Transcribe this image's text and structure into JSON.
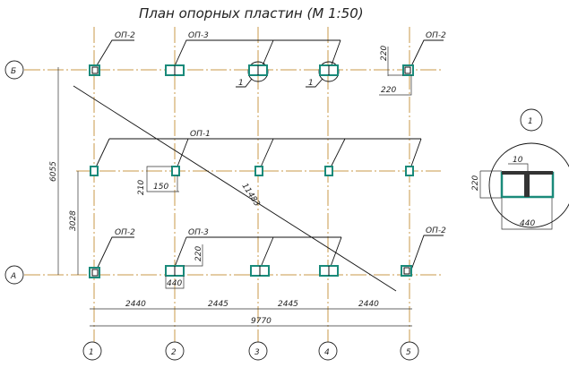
{
  "title": "План опорных пластин (М 1:50)",
  "axes_columns": [
    "1",
    "2",
    "3",
    "4",
    "5"
  ],
  "axes_rows": [
    "Б",
    "А"
  ],
  "marks": {
    "op1": "ОП-1",
    "op2": "ОП-2",
    "op3": "ОП-3",
    "callout": "1"
  },
  "dimensions": {
    "spans": [
      "2440",
      "2445",
      "2445",
      "2440"
    ],
    "total": "9770",
    "height_total": "6055",
    "height_half": "3028",
    "diagonal": "11483",
    "plate_offset_v": "220",
    "plate_offset_h": "220",
    "mid_v": "210",
    "mid_h": "150",
    "double_w": "440",
    "double_h": "220"
  },
  "detail": {
    "label": "1",
    "width": "440",
    "height": "220",
    "web": "10"
  },
  "colors": {
    "axis": "#c89a4a",
    "plate": "#1a8a7a"
  }
}
